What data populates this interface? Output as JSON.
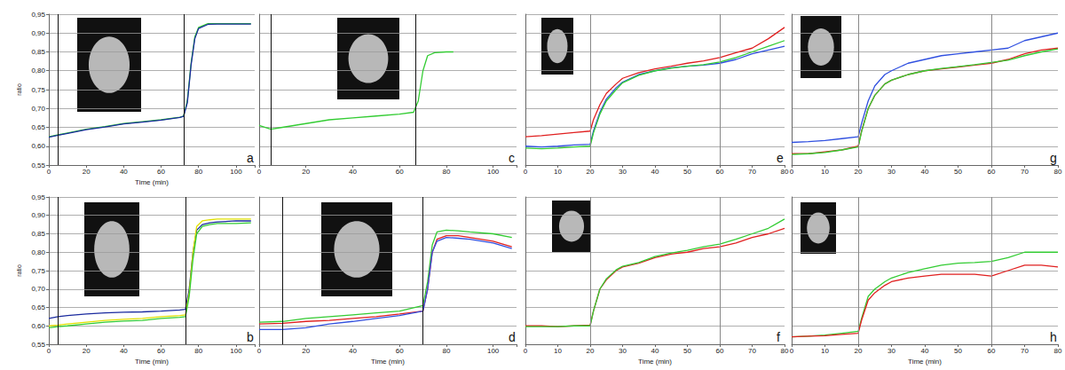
{
  "chart_data": [
    {
      "type": "line",
      "title": "a",
      "x_label": "Time (min)",
      "y_label": "ratio",
      "grid": true,
      "x": [
        0,
        5,
        10,
        20,
        30,
        40,
        50,
        60,
        70,
        72,
        74,
        76,
        78,
        80,
        85,
        90,
        100,
        108
      ],
      "series": [
        {
          "color": "#33cc33",
          "values": [
            0.625,
            0.63,
            0.635,
            0.645,
            0.652,
            0.66,
            0.665,
            0.67,
            0.677,
            0.68,
            0.72,
            0.82,
            0.89,
            0.915,
            0.925,
            0.925,
            0.925,
            0.925
          ]
        },
        {
          "color": "#1a2a9e",
          "values": [
            0.624,
            0.629,
            0.634,
            0.644,
            0.651,
            0.659,
            0.664,
            0.669,
            0.676,
            0.679,
            0.715,
            0.815,
            0.885,
            0.912,
            0.923,
            0.924,
            0.924,
            0.924
          ]
        }
      ],
      "vlines": [
        5,
        72
      ],
      "xlim": [
        0,
        110
      ],
      "xticks": [
        0,
        20,
        40,
        60,
        80,
        100
      ],
      "ylim": [
        0.55,
        0.95
      ],
      "yticks": [
        {
          "value": 0.55,
          "label": "0,55"
        },
        {
          "value": 0.6,
          "label": "0,60"
        },
        {
          "value": 0.65,
          "label": "0,65"
        },
        {
          "value": 0.7,
          "label": "0,70"
        },
        {
          "value": 0.75,
          "label": "0,75"
        },
        {
          "value": 0.8,
          "label": "0,80"
        },
        {
          "value": 0.85,
          "label": "0,85"
        },
        {
          "value": 0.9,
          "label": "0,90"
        },
        {
          "value": 0.95,
          "label": "0,95"
        }
      ]
    },
    {
      "type": "line",
      "title": "b",
      "x_label": "Time (min)",
      "y_label": "ratio",
      "grid": true,
      "x": [
        0,
        5,
        10,
        20,
        30,
        40,
        50,
        60,
        70,
        73,
        75,
        77,
        79,
        82,
        86,
        90,
        100,
        108
      ],
      "series": [
        {
          "color": "#1a2a9e",
          "values": [
            0.62,
            0.625,
            0.628,
            0.632,
            0.635,
            0.637,
            0.638,
            0.64,
            0.643,
            0.645,
            0.7,
            0.8,
            0.86,
            0.875,
            0.88,
            0.882,
            0.885,
            0.885
          ]
        },
        {
          "color": "#e0e000",
          "values": [
            0.6,
            0.602,
            0.605,
            0.61,
            0.615,
            0.618,
            0.62,
            0.625,
            0.628,
            0.63,
            0.69,
            0.8,
            0.87,
            0.885,
            0.888,
            0.89,
            0.89,
            0.89
          ]
        },
        {
          "color": "#33cc33",
          "values": [
            0.595,
            0.598,
            0.6,
            0.605,
            0.61,
            0.613,
            0.615,
            0.62,
            0.623,
            0.625,
            0.68,
            0.78,
            0.85,
            0.87,
            0.875,
            0.878,
            0.878,
            0.88
          ]
        }
      ],
      "vlines": [
        5,
        73
      ],
      "xlim": [
        0,
        110
      ],
      "xticks": [
        0,
        20,
        40,
        60,
        80,
        100
      ],
      "ylim": [
        0.55,
        0.95
      ],
      "yticks": [
        {
          "value": 0.55,
          "label": "0,55"
        },
        {
          "value": 0.6,
          "label": "0,60"
        },
        {
          "value": 0.65,
          "label": "0,65"
        },
        {
          "value": 0.7,
          "label": "0,70"
        },
        {
          "value": 0.75,
          "label": "0,75"
        },
        {
          "value": 0.8,
          "label": "0,80"
        },
        {
          "value": 0.85,
          "label": "0,85"
        },
        {
          "value": 0.9,
          "label": "0,90"
        },
        {
          "value": 0.95,
          "label": "0,95"
        }
      ]
    },
    {
      "type": "line",
      "title": "c",
      "grid": true,
      "tick_labels": "x",
      "x": [
        0,
        5,
        10,
        20,
        30,
        40,
        50,
        60,
        66,
        68,
        70,
        72,
        75,
        80,
        83
      ],
      "series": [
        {
          "color": "#33cc33",
          "values": [
            0.655,
            0.645,
            0.65,
            0.66,
            0.67,
            0.675,
            0.68,
            0.685,
            0.69,
            0.72,
            0.8,
            0.84,
            0.848,
            0.85,
            0.85
          ]
        }
      ],
      "vlines": [
        5,
        67
      ],
      "xlim": [
        0,
        110
      ],
      "xticks": [
        0,
        20,
        40,
        60,
        80,
        100
      ],
      "ylim": [
        0.55,
        0.95
      ],
      "yticks": [
        {
          "value": 0.55,
          "label": "0,55"
        },
        {
          "value": 0.6,
          "label": "0,60"
        },
        {
          "value": 0.65,
          "label": "0,65"
        },
        {
          "value": 0.7,
          "label": "0,70"
        },
        {
          "value": 0.75,
          "label": "0,75"
        },
        {
          "value": 0.8,
          "label": "0,80"
        },
        {
          "value": 0.85,
          "label": "0,85"
        },
        {
          "value": 0.9,
          "label": "0,90"
        },
        {
          "value": 0.95,
          "label": "0,95"
        }
      ]
    },
    {
      "type": "line",
      "title": "d",
      "x_label": "Time (min)",
      "grid": true,
      "tick_labels": "x",
      "x": [
        0,
        10,
        20,
        30,
        40,
        50,
        60,
        70,
        72,
        74,
        76,
        80,
        85,
        90,
        100,
        108
      ],
      "series": [
        {
          "color": "#33cc33",
          "values": [
            0.61,
            0.612,
            0.62,
            0.625,
            0.63,
            0.635,
            0.64,
            0.655,
            0.72,
            0.82,
            0.855,
            0.86,
            0.858,
            0.855,
            0.85,
            0.84
          ]
        },
        {
          "color": "#e02020",
          "values": [
            0.605,
            0.607,
            0.612,
            0.615,
            0.62,
            0.625,
            0.632,
            0.64,
            0.7,
            0.8,
            0.835,
            0.845,
            0.845,
            0.84,
            0.83,
            0.815
          ]
        },
        {
          "color": "#3050e0",
          "values": [
            0.59,
            0.59,
            0.595,
            0.605,
            0.612,
            0.62,
            0.628,
            0.64,
            0.7,
            0.8,
            0.83,
            0.84,
            0.838,
            0.835,
            0.825,
            0.81
          ]
        }
      ],
      "vlines": [
        10,
        70
      ],
      "xlim": [
        0,
        110
      ],
      "xticks": [
        0,
        20,
        40,
        60,
        80,
        100
      ],
      "ylim": [
        0.55,
        0.95
      ],
      "yticks": [
        {
          "value": 0.55,
          "label": "0,55"
        },
        {
          "value": 0.6,
          "label": "0,60"
        },
        {
          "value": 0.65,
          "label": "0,65"
        },
        {
          "value": 0.7,
          "label": "0,70"
        },
        {
          "value": 0.75,
          "label": "0,75"
        },
        {
          "value": 0.8,
          "label": "0,80"
        },
        {
          "value": 0.85,
          "label": "0,85"
        },
        {
          "value": 0.9,
          "label": "0,90"
        },
        {
          "value": 0.95,
          "label": "0,95"
        }
      ]
    },
    {
      "type": "line",
      "title": "e",
      "grid": true,
      "tick_labels": "x",
      "x": [
        0,
        5,
        10,
        15,
        20,
        21,
        23,
        25,
        28,
        30,
        35,
        40,
        45,
        50,
        55,
        60,
        65,
        70,
        75,
        80
      ],
      "series": [
        {
          "color": "#e02020",
          "values": [
            0.625,
            0.628,
            0.632,
            0.636,
            0.64,
            0.67,
            0.71,
            0.74,
            0.765,
            0.78,
            0.795,
            0.805,
            0.812,
            0.82,
            0.826,
            0.835,
            0.848,
            0.86,
            0.885,
            0.915
          ]
        },
        {
          "color": "#3050e0",
          "values": [
            0.6,
            0.598,
            0.6,
            0.603,
            0.605,
            0.64,
            0.69,
            0.725,
            0.755,
            0.77,
            0.79,
            0.8,
            0.808,
            0.812,
            0.815,
            0.82,
            0.83,
            0.845,
            0.855,
            0.865
          ]
        },
        {
          "color": "#33cc33",
          "values": [
            0.595,
            0.593,
            0.595,
            0.598,
            0.6,
            0.635,
            0.685,
            0.72,
            0.75,
            0.768,
            0.788,
            0.8,
            0.807,
            0.812,
            0.816,
            0.823,
            0.835,
            0.85,
            0.865,
            0.88
          ]
        }
      ],
      "vlines": [
        20,
        60
      ],
      "xlim": [
        0,
        80
      ],
      "xticks": [
        0,
        10,
        20,
        30,
        40,
        50,
        60,
        70,
        80
      ],
      "ylim": [
        0.55,
        0.95
      ],
      "yticks": [
        {
          "value": 0.55,
          "label": "0,55"
        },
        {
          "value": 0.6,
          "label": "0,60"
        },
        {
          "value": 0.65,
          "label": "0,65"
        },
        {
          "value": 0.7,
          "label": "0,70"
        },
        {
          "value": 0.75,
          "label": "0,75"
        },
        {
          "value": 0.8,
          "label": "0,80"
        },
        {
          "value": 0.85,
          "label": "0,85"
        },
        {
          "value": 0.9,
          "label": "0,90"
        },
        {
          "value": 0.95,
          "label": "0,95"
        }
      ]
    },
    {
      "type": "line",
      "title": "f",
      "x_label": "Time (min)",
      "grid": true,
      "tick_labels": "x",
      "x": [
        0,
        5,
        10,
        15,
        20,
        21,
        23,
        25,
        28,
        30,
        35,
        40,
        45,
        50,
        55,
        60,
        65,
        70,
        75,
        80
      ],
      "series": [
        {
          "color": "#e02020",
          "values": [
            0.6,
            0.6,
            0.598,
            0.6,
            0.602,
            0.64,
            0.7,
            0.725,
            0.75,
            0.76,
            0.77,
            0.785,
            0.795,
            0.8,
            0.81,
            0.815,
            0.825,
            0.84,
            0.85,
            0.865
          ]
        },
        {
          "color": "#33cc33",
          "values": [
            0.598,
            0.598,
            0.598,
            0.6,
            0.6,
            0.64,
            0.7,
            0.728,
            0.752,
            0.762,
            0.772,
            0.788,
            0.798,
            0.805,
            0.815,
            0.822,
            0.835,
            0.85,
            0.865,
            0.89
          ]
        }
      ],
      "vlines": [
        20,
        60
      ],
      "xlim": [
        0,
        80
      ],
      "xticks": [
        0,
        10,
        20,
        30,
        40,
        50,
        60,
        70,
        80
      ],
      "ylim": [
        0.55,
        0.95
      ],
      "yticks": [
        {
          "value": 0.55,
          "label": "0,55"
        },
        {
          "value": 0.6,
          "label": "0,60"
        },
        {
          "value": 0.65,
          "label": "0,65"
        },
        {
          "value": 0.7,
          "label": "0,70"
        },
        {
          "value": 0.75,
          "label": "0,75"
        },
        {
          "value": 0.8,
          "label": "0,80"
        },
        {
          "value": 0.85,
          "label": "0,85"
        },
        {
          "value": 0.9,
          "label": "0,90"
        },
        {
          "value": 0.95,
          "label": "0,95"
        }
      ]
    },
    {
      "type": "line",
      "title": "g",
      "grid": true,
      "tick_labels": "x",
      "x": [
        0,
        5,
        10,
        15,
        20,
        21,
        23,
        25,
        28,
        30,
        35,
        40,
        45,
        50,
        55,
        60,
        65,
        70,
        75,
        80
      ],
      "series": [
        {
          "color": "#3050e0",
          "values": [
            0.61,
            0.612,
            0.615,
            0.62,
            0.625,
            0.66,
            0.72,
            0.76,
            0.79,
            0.8,
            0.82,
            0.83,
            0.84,
            0.845,
            0.85,
            0.855,
            0.86,
            0.88,
            0.89,
            0.9
          ]
        },
        {
          "color": "#e02020",
          "values": [
            0.58,
            0.58,
            0.585,
            0.59,
            0.6,
            0.64,
            0.7,
            0.735,
            0.765,
            0.775,
            0.79,
            0.8,
            0.805,
            0.81,
            0.815,
            0.82,
            0.83,
            0.845,
            0.855,
            0.86
          ]
        },
        {
          "color": "#33cc33",
          "values": [
            0.578,
            0.58,
            0.583,
            0.59,
            0.598,
            0.638,
            0.7,
            0.735,
            0.765,
            0.775,
            0.79,
            0.8,
            0.806,
            0.811,
            0.816,
            0.822,
            0.828,
            0.84,
            0.85,
            0.858
          ]
        }
      ],
      "vlines": [
        20,
        60
      ],
      "xlim": [
        0,
        80
      ],
      "xticks": [
        0,
        10,
        20,
        30,
        40,
        50,
        60,
        70,
        80
      ],
      "ylim": [
        0.55,
        0.95
      ],
      "yticks": [
        {
          "value": 0.55,
          "label": "0,55"
        },
        {
          "value": 0.6,
          "label": "0,60"
        },
        {
          "value": 0.65,
          "label": "0,65"
        },
        {
          "value": 0.7,
          "label": "0,70"
        },
        {
          "value": 0.75,
          "label": "0,75"
        },
        {
          "value": 0.8,
          "label": "0,80"
        },
        {
          "value": 0.85,
          "label": "0,85"
        },
        {
          "value": 0.9,
          "label": "0,90"
        },
        {
          "value": 0.95,
          "label": "0,95"
        }
      ]
    },
    {
      "type": "line",
      "title": "h",
      "x_label": "Time (min)",
      "grid": true,
      "tick_labels": "x",
      "x": [
        0,
        5,
        10,
        15,
        20,
        21,
        23,
        25,
        28,
        30,
        35,
        40,
        45,
        50,
        55,
        60,
        65,
        70,
        75,
        80
      ],
      "series": [
        {
          "color": "#33cc33",
          "values": [
            0.57,
            0.572,
            0.575,
            0.58,
            0.585,
            0.62,
            0.68,
            0.7,
            0.72,
            0.73,
            0.745,
            0.755,
            0.765,
            0.77,
            0.772,
            0.775,
            0.785,
            0.8,
            0.8,
            0.8
          ]
        },
        {
          "color": "#e02020",
          "values": [
            0.57,
            0.572,
            0.573,
            0.577,
            0.58,
            0.615,
            0.67,
            0.69,
            0.71,
            0.72,
            0.73,
            0.735,
            0.74,
            0.74,
            0.74,
            0.735,
            0.75,
            0.765,
            0.765,
            0.76
          ]
        }
      ],
      "vlines": [
        20,
        60
      ],
      "xlim": [
        0,
        80
      ],
      "xticks": [
        0,
        10,
        20,
        30,
        40,
        50,
        60,
        70,
        80
      ],
      "ylim": [
        0.55,
        0.95
      ],
      "yticks": [
        {
          "value": 0.55,
          "label": "0,55"
        },
        {
          "value": 0.6,
          "label": "0,60"
        },
        {
          "value": 0.65,
          "label": "0,65"
        },
        {
          "value": 0.7,
          "label": "0,70"
        },
        {
          "value": 0.75,
          "label": "0,75"
        },
        {
          "value": 0.8,
          "label": "0,80"
        },
        {
          "value": 0.85,
          "label": "0,85"
        },
        {
          "value": 0.9,
          "label": "0,90"
        },
        {
          "value": 0.95,
          "label": "0,95"
        }
      ]
    }
  ]
}
